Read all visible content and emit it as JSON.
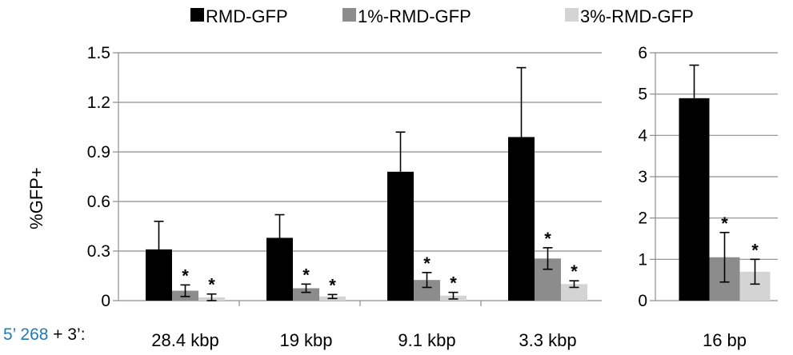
{
  "chart_data": [
    {
      "type": "bar",
      "ylabel": "%GFP+",
      "ylim": [
        0,
        1.5
      ],
      "yticks": [
        "0",
        "0.3",
        "0.6",
        "0.9",
        "1.2",
        "1.5"
      ],
      "categories": [
        "28.4 kbp",
        "19 kbp",
        "9.1 kbp",
        "3.3 kbp"
      ],
      "series": [
        {
          "name": "RMD-GFP",
          "color": "#000000",
          "values": [
            0.31,
            0.38,
            0.78,
            0.99
          ],
          "errors": [
            0.17,
            0.14,
            0.24,
            0.42
          ],
          "significant": [
            false,
            false,
            false,
            false
          ]
        },
        {
          "name": "1%-RMD-GFP",
          "color": "#8c8c8c",
          "values": [
            0.06,
            0.075,
            0.125,
            0.255
          ],
          "errors": [
            0.035,
            0.025,
            0.045,
            0.065
          ],
          "significant": [
            true,
            true,
            true,
            true
          ]
        },
        {
          "name": "3%-RMD-GFP",
          "color": "#d4d4d4",
          "values": [
            0.02,
            0.025,
            0.03,
            0.1
          ],
          "errors": [
            0.02,
            0.012,
            0.02,
            0.02
          ],
          "significant": [
            true,
            true,
            true,
            true
          ]
        }
      ],
      "grid": true
    },
    {
      "type": "bar",
      "ylim": [
        0,
        6
      ],
      "yticks": [
        "0",
        "1",
        "2",
        "3",
        "4",
        "5",
        "6"
      ],
      "categories": [
        "16 bp"
      ],
      "series": [
        {
          "name": "RMD-GFP",
          "color": "#000000",
          "values": [
            4.9
          ],
          "errors": [
            0.8
          ],
          "significant": [
            false
          ]
        },
        {
          "name": "1%-RMD-GFP",
          "color": "#8c8c8c",
          "values": [
            1.05
          ],
          "errors": [
            0.6
          ],
          "significant": [
            true
          ]
        },
        {
          "name": "3%-RMD-GFP",
          "color": "#d4d4d4",
          "values": [
            0.7
          ],
          "errors": [
            0.3
          ],
          "significant": [
            true
          ]
        }
      ],
      "grid": true
    }
  ],
  "legend": {
    "placement": "top",
    "items": [
      "RMD-GFP",
      "1%-RMD-GFP",
      "3%-RMD-GFP"
    ]
  },
  "significance_marker": "*",
  "row_label": {
    "part1": "5’ 268",
    "part2": " + 3’:",
    "part1_color": "#1f7ab5",
    "part2_color": "#000000"
  }
}
